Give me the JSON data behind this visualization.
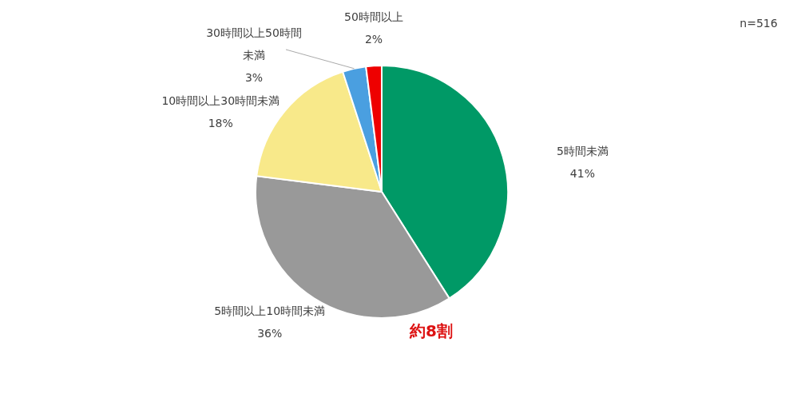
{
  "chart_data": {
    "type": "pie",
    "categories": [
      "5時間未満",
      "5時間以上10時間未満",
      "10時間以上30時間未満",
      "30時間以上50時間未満",
      "50時間以上"
    ],
    "values": [
      41,
      36,
      18,
      3,
      2
    ],
    "value_labels": [
      "41%",
      "36%",
      "18%",
      "3%",
      "2%"
    ],
    "colors": [
      "#009966",
      "#999999",
      "#f8e98a",
      "#4a9fe0",
      "#ee0000"
    ],
    "annotations": [
      "n=516",
      "約8割"
    ],
    "legend": false
  }
}
